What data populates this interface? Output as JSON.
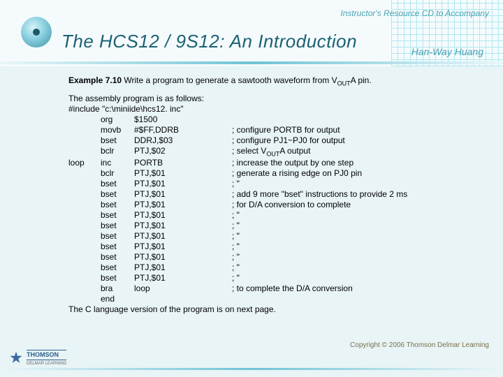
{
  "header": {
    "topline": "Instructor's Resource CD to Accompany",
    "title": "The HCS12 / 9S12: An Introduction",
    "author": "Han-Way Huang"
  },
  "body": {
    "example_prefix": "Example 7.10",
    "example_rest1": " Write a program to generate a sawtooth waveform from V",
    "example_sub": "OUT",
    "example_rest2": "A pin.",
    "intro1": "The assembly program is as follows:",
    "intro2": "#include   \"c:\\miniide\\hcs12. inc\"",
    "rows": [
      {
        "label": "",
        "mn": "org",
        "op": "$1500",
        "cm": ""
      },
      {
        "label": "",
        "mn": "movb",
        "op": "#$FF,DDRB",
        "cm": "; configure PORTB for output"
      },
      {
        "label": "",
        "mn": "bset",
        "op": "DDRJ,$03",
        "cm": "; configure PJ1~PJ0 for output"
      },
      {
        "label": "",
        "mn": "bclr",
        "op": "PTJ,$02",
        "cm": "; select V<sub>OUT</sub>A output"
      },
      {
        "label": "loop",
        "mn": "inc",
        "op": "PORTB",
        "cm": "; increase the output by one step"
      },
      {
        "label": "",
        "mn": "bclr",
        "op": "PTJ,$01",
        "cm": "; generate a rising edge on PJ0 pin"
      },
      {
        "label": "",
        "mn": "bset",
        "op": "PTJ,$01",
        "cm": ";       \""
      },
      {
        "label": "",
        "mn": "bset",
        "op": "PTJ,$01",
        "cm": "; add 9 more \"bset\" instructions to provide 2 ms"
      },
      {
        "label": "",
        "mn": "bset",
        "op": "PTJ,$01",
        "cm": "; for D/A conversion to complete"
      },
      {
        "label": "",
        "mn": "bset",
        "op": "PTJ,$01",
        "cm": ";       \""
      },
      {
        "label": "",
        "mn": "bset",
        "op": "PTJ,$01",
        "cm": ";       \""
      },
      {
        "label": "",
        "mn": "bset",
        "op": "PTJ,$01",
        "cm": ";       \""
      },
      {
        "label": "",
        "mn": "bset",
        "op": "PTJ,$01",
        "cm": ";       \""
      },
      {
        "label": "",
        "mn": "bset",
        "op": "PTJ,$01",
        "cm": ";       \""
      },
      {
        "label": "",
        "mn": "bset",
        "op": "PTJ,$01",
        "cm": ";       \""
      },
      {
        "label": "",
        "mn": "bset",
        "op": "PTJ,$01",
        "cm": ";       \""
      },
      {
        "label": "",
        "mn": "bra",
        "op": "loop",
        "cm": "; to complete the D/A conversion"
      },
      {
        "label": "",
        "mn": "end",
        "op": "",
        "cm": ""
      }
    ],
    "closing": "The C language version of the program is on next page."
  },
  "footer": {
    "publisher_top": "THOMSON",
    "publisher_bottom": "DELMAR LEARNING",
    "copyright": "Copyright © 2006 Thomson Delmar Learning"
  }
}
